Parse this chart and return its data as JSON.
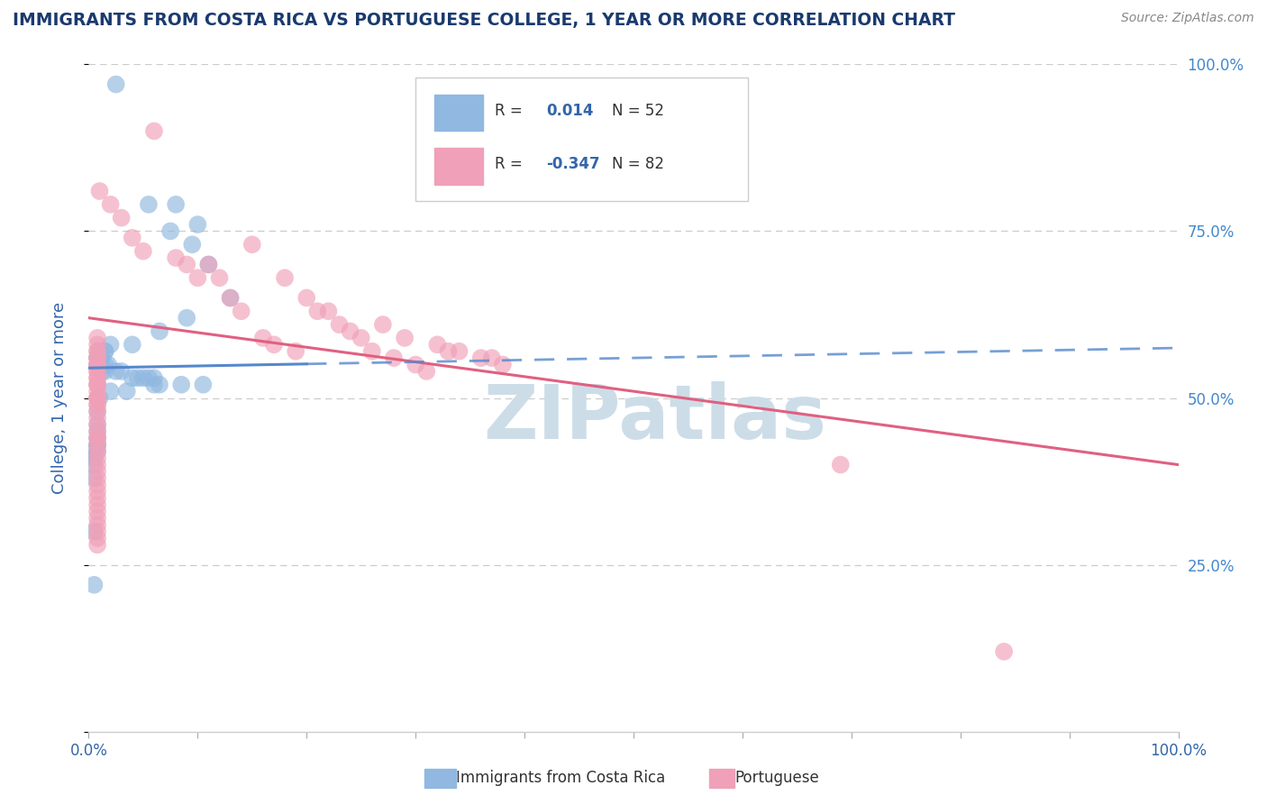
{
  "title": "IMMIGRANTS FROM COSTA RICA VS PORTUGUESE COLLEGE, 1 YEAR OR MORE CORRELATION CHART",
  "source_text": "Source: ZipAtlas.com",
  "ylabel": "College, 1 year or more",
  "xlim": [
    0,
    100
  ],
  "ylim": [
    0,
    100
  ],
  "blue_color": "#90b8e0",
  "pink_color": "#f0a0b8",
  "blue_line_color": "#5588cc",
  "pink_line_color": "#e06080",
  "title_color": "#1a3a6e",
  "axis_label_color": "#3366aa",
  "right_tick_color": "#4488cc",
  "watermark_color": "#ccdde8",
  "background_color": "#ffffff",
  "blue_scatter_x": [
    2.5,
    5.5,
    8.0,
    7.5,
    10.0,
    9.5,
    11.0,
    13.0,
    9.0,
    6.5,
    4.0,
    2.0,
    1.5,
    1.0,
    1.5,
    1.0,
    0.8,
    0.8,
    1.2,
    1.5,
    1.8,
    1.0,
    0.8,
    1.2,
    1.5,
    2.5,
    3.0,
    4.0,
    5.0,
    6.0,
    4.5,
    5.5,
    6.5,
    8.5,
    10.5,
    6.0,
    3.5,
    2.0,
    1.0,
    0.8,
    0.8,
    0.8,
    0.8,
    0.8,
    0.8,
    0.8,
    0.5,
    0.5,
    0.5,
    0.5,
    0.5,
    0.5
  ],
  "blue_scatter_y": [
    97,
    79,
    79,
    75,
    76,
    73,
    70,
    65,
    62,
    60,
    58,
    58,
    57,
    57,
    57,
    56,
    56,
    56,
    56,
    55,
    55,
    55,
    55,
    54,
    54,
    54,
    54,
    53,
    53,
    53,
    53,
    53,
    52,
    52,
    52,
    52,
    51,
    51,
    50,
    48,
    46,
    45,
    44,
    43,
    43,
    42,
    42,
    41,
    40,
    38,
    30,
    22
  ],
  "pink_scatter_x": [
    6.0,
    15.0,
    22.0,
    27.0,
    29.0,
    32.0,
    33.0,
    34.0,
    36.0,
    37.0,
    38.0,
    18.0,
    20.0,
    21.0,
    23.0,
    24.0,
    25.0,
    26.0,
    28.0,
    30.0,
    31.0,
    11.0,
    12.0,
    13.0,
    14.0,
    16.0,
    17.0,
    19.0,
    8.0,
    9.0,
    10.0,
    4.0,
    5.0,
    3.0,
    2.0,
    1.0,
    0.8,
    0.8,
    0.8,
    0.8,
    0.8,
    0.8,
    0.8,
    0.8,
    0.8,
    0.8,
    0.8,
    0.8,
    0.8,
    0.8,
    0.8,
    0.8,
    0.8,
    0.8,
    0.8,
    0.8,
    0.8,
    0.8,
    0.8,
    0.8,
    0.8,
    0.8,
    0.8,
    0.8,
    0.8,
    0.8,
    0.8,
    0.8,
    0.8,
    0.8,
    0.8,
    0.8,
    0.8,
    0.8,
    69.0,
    0.8,
    0.8,
    0.8,
    0.8,
    0.8,
    0.8,
    84.0
  ],
  "pink_scatter_y": [
    90,
    73,
    63,
    61,
    59,
    58,
    57,
    57,
    56,
    56,
    55,
    68,
    65,
    63,
    61,
    60,
    59,
    57,
    56,
    55,
    54,
    70,
    68,
    65,
    63,
    59,
    58,
    57,
    71,
    70,
    68,
    74,
    72,
    77,
    79,
    81,
    59,
    58,
    57,
    57,
    56,
    56,
    55,
    55,
    55,
    54,
    54,
    53,
    53,
    52,
    52,
    52,
    51,
    50,
    50,
    50,
    49,
    49,
    48,
    47,
    46,
    45,
    44,
    44,
    43,
    42,
    41,
    40,
    39,
    38,
    37,
    36,
    35,
    34,
    40,
    33,
    32,
    31,
    30,
    29,
    28,
    12
  ],
  "blue_trend_x": [
    0,
    100
  ],
  "blue_trend_y": [
    54.5,
    57.5
  ],
  "pink_trend_x": [
    0,
    100
  ],
  "pink_trend_y": [
    62.0,
    40.0
  ]
}
